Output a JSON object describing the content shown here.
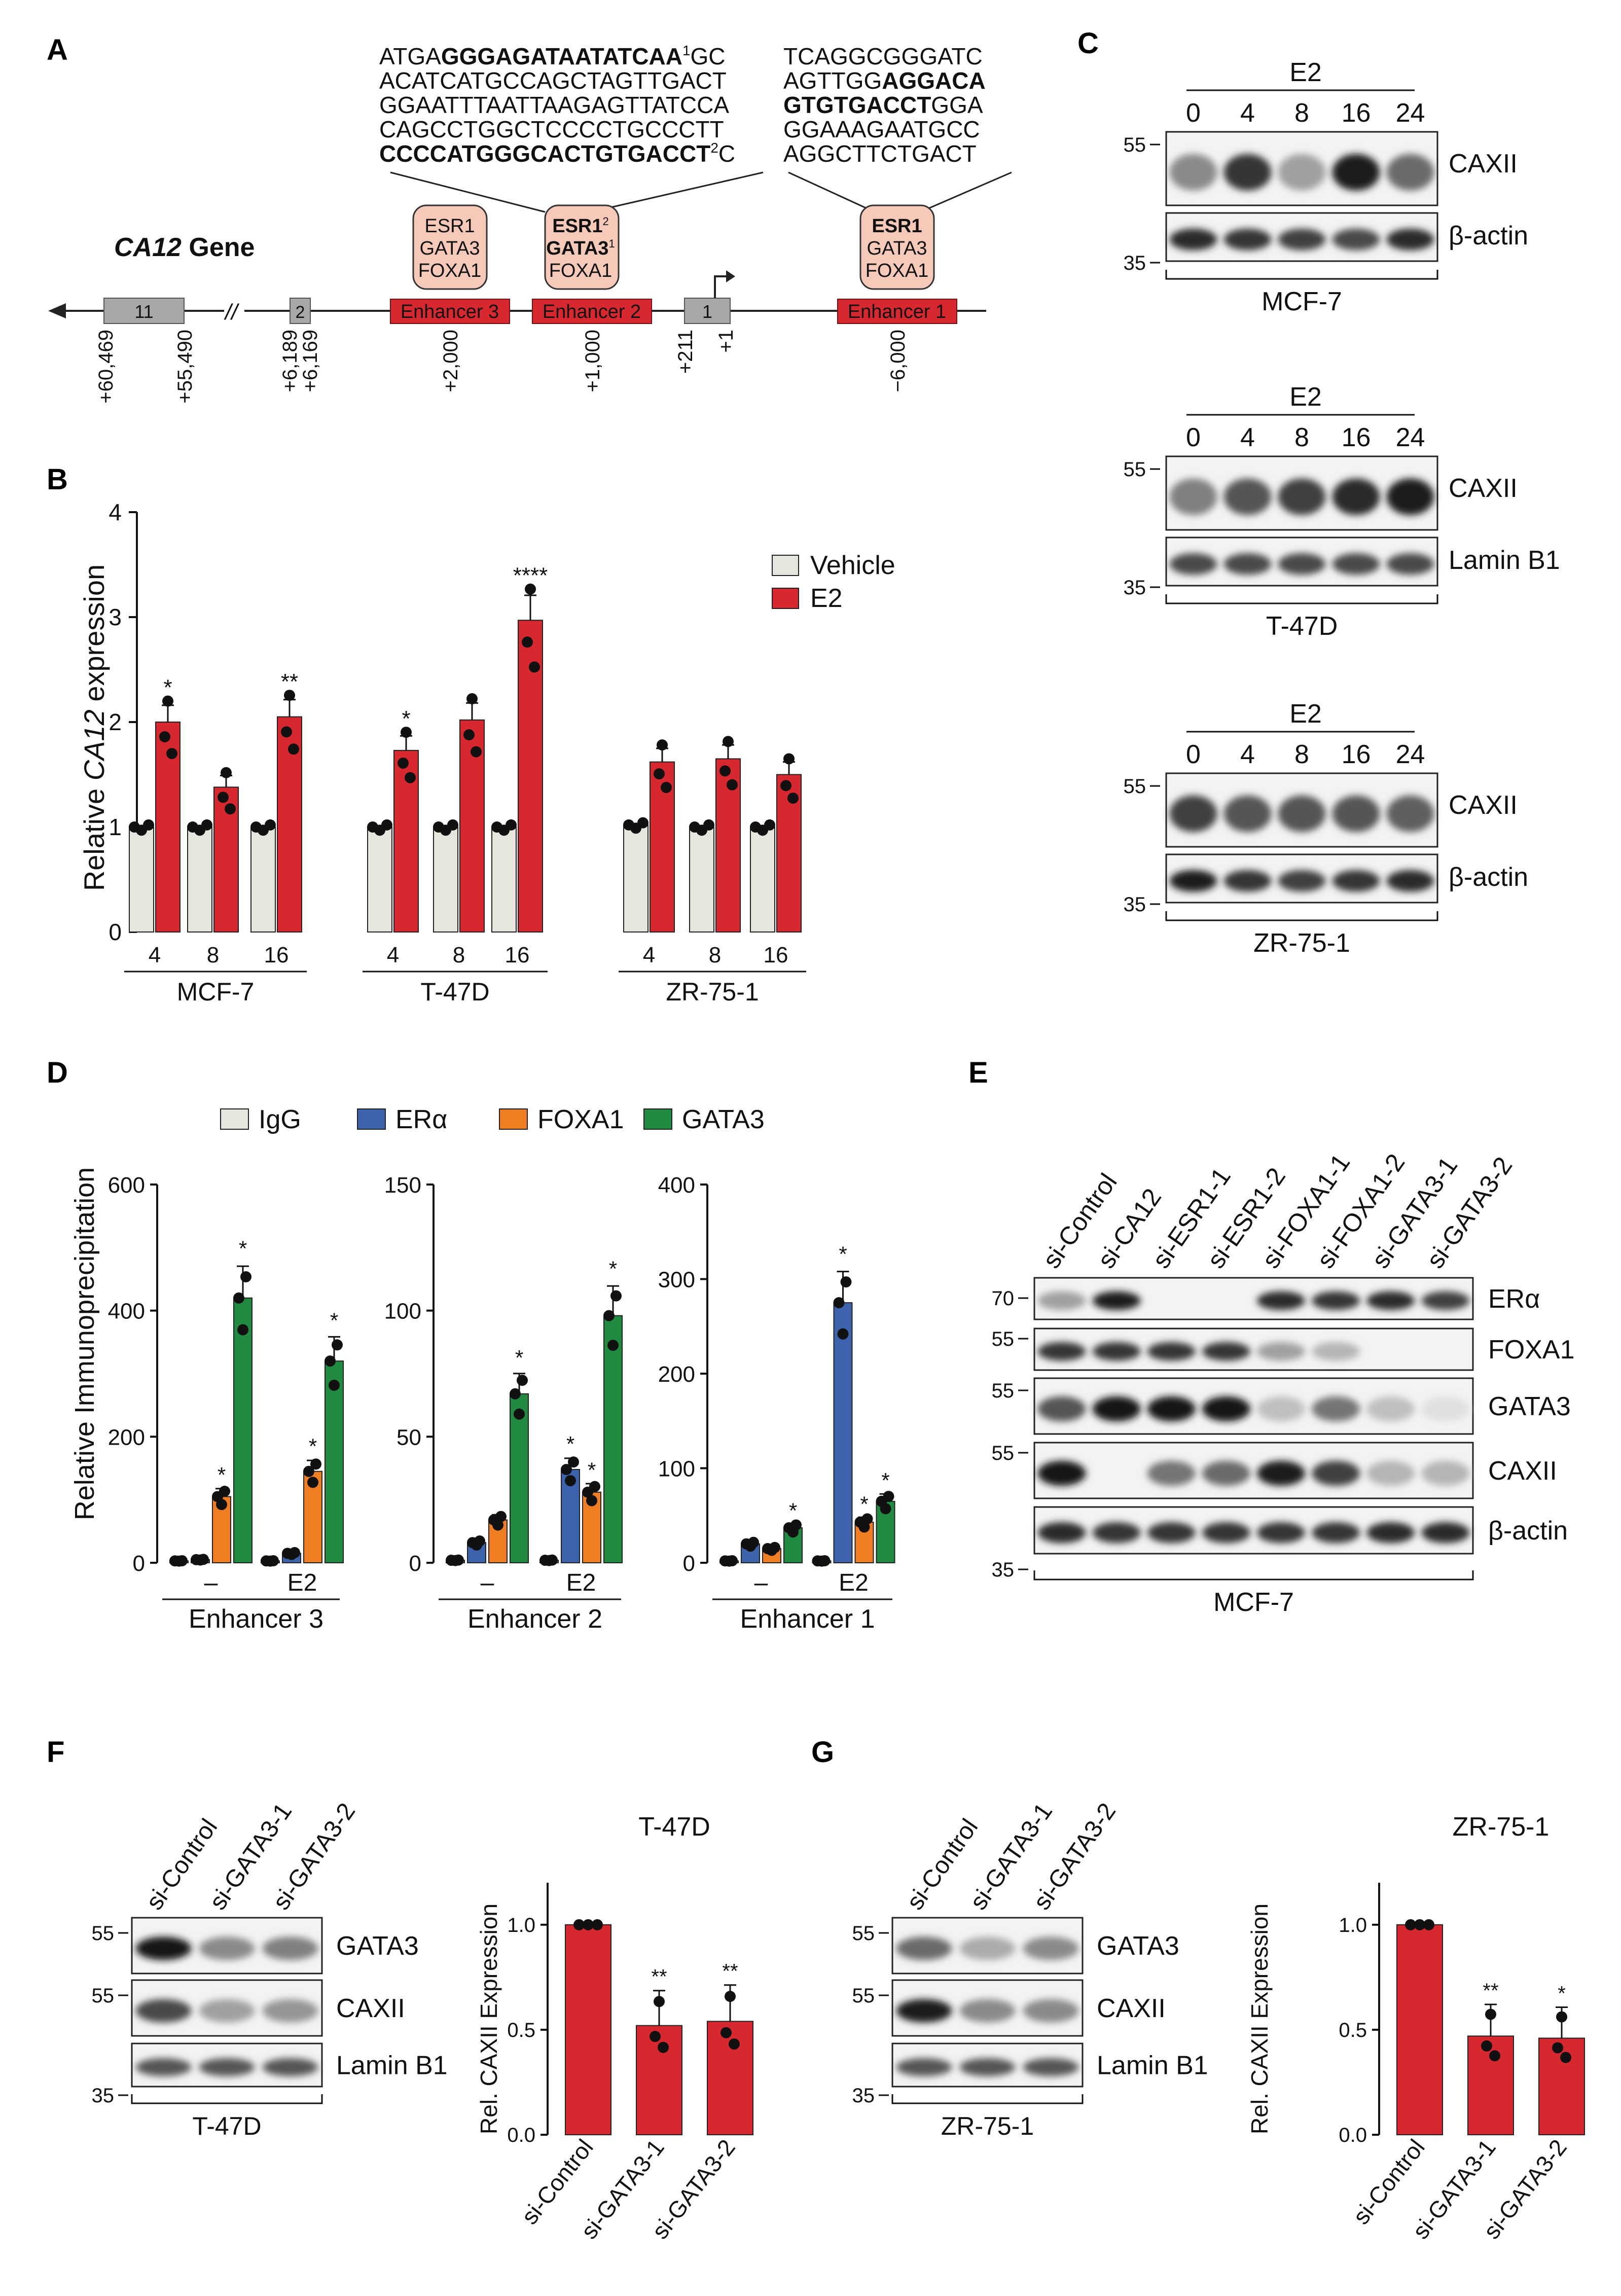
{
  "panels": {
    "A": "A",
    "B": "B",
    "C": "C",
    "D": "D",
    "E": "E",
    "F": "F",
    "G": "G"
  },
  "colors": {
    "vehicle": "#e6e6df",
    "e2": "#d7282f",
    "igg": "#e6e6df",
    "era": "#3c63ac",
    "foxa1": "#ef7d22",
    "gata3": "#1f8a40",
    "enhancer": "#d7282f",
    "tf_box": "#f6c9b9",
    "exon": "#a8a8a8"
  },
  "panelA": {
    "gene_title_italic": "CA12",
    "gene_title_rest": " Gene",
    "enhancer_labels": [
      "Enhancer 3",
      "Enhancer 2",
      "Enhancer 1"
    ],
    "exon_labels": [
      "11",
      "2",
      "1"
    ],
    "tf_box3": [
      "ESR1",
      "GATA3",
      "FOXA1"
    ],
    "tf_box2": {
      "esr1": "ESR1",
      "esr1_sup": "2",
      "gata3": "GATA3",
      "gata3_sup": "1",
      "foxa1": "FOXA1"
    },
    "tf_box1": [
      "ESR1",
      "GATA3",
      "FOXA1"
    ],
    "positions": [
      "+60,469",
      "+55,490",
      "+6,189",
      "+6,169",
      "+2,000",
      "+1,000",
      "+211",
      "+1",
      "−6,000"
    ],
    "break_mark": "//",
    "seq_left": {
      "l1a": "ATGA",
      "l1b": "GGGAGATAATATCAA",
      "l1sup": "1",
      "l1c": "GC",
      "l2": "ACATCATGCCAGCTAGTTGACT",
      "l3": "GGAATTTAATTAAGAGTTATCCA",
      "l4": "CAGCCTGGCTCCCCTGCCCTT",
      "l5a": "CCCCATGGGCACTGTGACCT",
      "l5sup": "2",
      "l5b": "C"
    },
    "seq_right": {
      "l1": "TCAGGCGGGATC",
      "l2a": "AGTTGG",
      "l2b": "AGGACA",
      "l3a": "GTGTGACCT",
      "l3b": "GGA",
      "l4": "GGAAAGAATGCC",
      "l5": "AGGCTTCTGACT"
    }
  },
  "chart_data": [
    {
      "panel": "B",
      "type": "bar",
      "ylabel_pre": "Relative ",
      "ylabel_italic": "CA12",
      "ylabel_post": " expression",
      "ylim": [
        0,
        4
      ],
      "yticks": [
        "0",
        "1",
        "2",
        "3",
        "4"
      ],
      "groups": [
        {
          "name": "MCF-7",
          "times": [
            "4",
            "8",
            "16"
          ],
          "vehicle": [
            1.0,
            1.0,
            1.0
          ],
          "e2": [
            2.0,
            1.38,
            2.05
          ],
          "sig": [
            "*",
            "",
            "**"
          ]
        },
        {
          "name": "T-47D",
          "times": [
            "4",
            "8",
            "16"
          ],
          "vehicle": [
            1.0,
            1.0,
            1.0
          ],
          "e2": [
            1.73,
            2.02,
            2.97
          ],
          "sig": [
            "*",
            "",
            "****"
          ]
        },
        {
          "name": "ZR-75-1",
          "times": [
            "4",
            "8",
            "16"
          ],
          "vehicle": [
            1.02,
            1.0,
            1.0
          ],
          "e2": [
            1.62,
            1.65,
            1.5
          ],
          "sig": [
            "",
            "",
            ""
          ]
        }
      ],
      "legend": [
        "Vehicle",
        "E2"
      ]
    },
    {
      "panel": "D",
      "type": "bar",
      "ylabel": "Relative Immunoprecipitation",
      "legend": [
        "IgG",
        "ERα",
        "FOXA1",
        "GATA3"
      ],
      "charts": [
        {
          "title": "Enhancer 3",
          "ylim": [
            0,
            600
          ],
          "yticks": [
            "0",
            "200",
            "400",
            "600"
          ],
          "conds": [
            "–",
            "E2"
          ],
          "values": [
            [
              3,
              5,
              105,
              420
            ],
            [
              3,
              15,
              145,
              320
            ]
          ],
          "sig": [
            [
              "",
              "",
              "*",
              "*"
            ],
            [
              "",
              "",
              "*",
              "*"
            ]
          ]
        },
        {
          "title": "Enhancer 2",
          "ylim": [
            0,
            150
          ],
          "yticks": [
            "0",
            "50",
            "100",
            "150"
          ],
          "conds": [
            "–",
            "E2"
          ],
          "values": [
            [
              1,
              8,
              17,
              67
            ],
            [
              1,
              37,
              28,
              98
            ]
          ],
          "sig": [
            [
              "",
              "",
              "",
              "*"
            ],
            [
              "",
              "*",
              "*",
              "*"
            ]
          ]
        },
        {
          "title": "Enhancer 1",
          "ylim": [
            0,
            400
          ],
          "yticks": [
            "0",
            "100",
            "200",
            "300",
            "400"
          ],
          "conds": [
            "–",
            "E2"
          ],
          "values": [
            [
              2,
              20,
              15,
              37
            ],
            [
              2,
              275,
              43,
              65
            ]
          ],
          "sig": [
            [
              "",
              "",
              "",
              "*"
            ],
            [
              "",
              "*",
              "*",
              "*"
            ]
          ]
        }
      ]
    },
    {
      "panel": "F",
      "type": "bar",
      "title": "T-47D",
      "ylabel": "Rel. CAXII Expression",
      "ylim": [
        0,
        1.2
      ],
      "yticks": [
        "0.0",
        "0.5",
        "1.0"
      ],
      "categories": [
        "si-Control",
        "si-GATA3-1",
        "si-GATA3-2"
      ],
      "values": [
        1.0,
        0.52,
        0.54
      ],
      "sig": [
        "",
        "**",
        "**"
      ]
    },
    {
      "panel": "G",
      "type": "bar",
      "title": "ZR-75-1",
      "ylabel": "Rel. CAXII Expression",
      "ylim": [
        0,
        1.2
      ],
      "yticks": [
        "0.0",
        "0.5",
        "1.0"
      ],
      "categories": [
        "si-Control",
        "si-GATA3-1",
        "si-GATA3-2"
      ],
      "values": [
        1.0,
        0.47,
        0.46
      ],
      "sig": [
        "",
        "**",
        "*"
      ]
    }
  ],
  "panelC": {
    "blots": [
      {
        "cell": "MCF-7",
        "treatment": "E2",
        "times": [
          "0",
          "4",
          "8",
          "16",
          "24"
        ],
        "proteins": [
          "CAXII",
          "β-actin"
        ],
        "mw": [
          "55",
          "35"
        ]
      },
      {
        "cell": "T-47D",
        "treatment": "E2",
        "times": [
          "0",
          "4",
          "8",
          "16",
          "24"
        ],
        "proteins": [
          "CAXII",
          "Lamin B1"
        ],
        "mw": [
          "55",
          "35"
        ]
      },
      {
        "cell": "ZR-75-1",
        "treatment": "E2",
        "times": [
          "0",
          "4",
          "8",
          "16",
          "24"
        ],
        "proteins": [
          "CAXII",
          "β-actin"
        ],
        "mw": [
          "55",
          "35"
        ]
      }
    ]
  },
  "panelE": {
    "lanes": [
      "si-Control",
      "si-CA12",
      "si-ESR1-1",
      "si-ESR1-2",
      "si-FOXA1-1",
      "si-FOXA1-2",
      "si-GATA3-1",
      "si-GATA3-2"
    ],
    "proteins": [
      "ERα",
      "FOXA1",
      "GATA3",
      "CAXII",
      "β-actin"
    ],
    "mw": [
      "70",
      "55",
      "55",
      "55",
      "35"
    ],
    "cell": "MCF-7"
  },
  "panelF": {
    "lanes": [
      "si-Control",
      "si-GATA3-1",
      "si-GATA3-2"
    ],
    "proteins": [
      "GATA3",
      "CAXII",
      "Lamin B1"
    ],
    "mw": [
      "55",
      "55",
      "35"
    ],
    "cell": "T-47D"
  },
  "panelG": {
    "lanes": [
      "si-Control",
      "si-GATA3-1",
      "si-GATA3-2"
    ],
    "proteins": [
      "GATA3",
      "CAXII",
      "Lamin B1"
    ],
    "mw": [
      "55",
      "55",
      "35"
    ],
    "cell": "ZR-75-1"
  }
}
